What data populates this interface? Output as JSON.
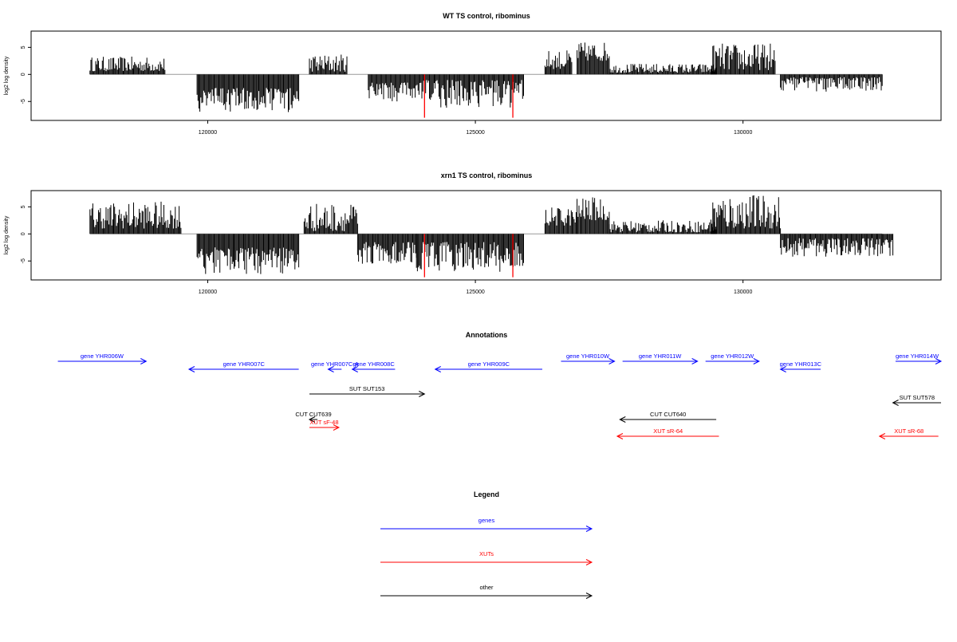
{
  "panels": [
    {
      "title": "WT TS control, ribominus",
      "ylabel": "log2 log density",
      "yticks": [
        -5,
        0,
        5
      ],
      "ylim": [
        -8.5,
        8
      ],
      "xlim": [
        116700,
        133700
      ],
      "xticks": [
        120000,
        125000,
        130000
      ]
    },
    {
      "title": "xrn1 TS control, ribominus",
      "ylabel": "log2 log density",
      "yticks": [
        -5,
        0,
        5
      ],
      "ylim": [
        -8.5,
        8
      ],
      "xlim": [
        116700,
        133700
      ],
      "xticks": [
        120000,
        125000,
        130000
      ]
    }
  ],
  "chart_data": [
    {
      "type": "bar",
      "title": "WT TS control, ribominus",
      "xlabel": "",
      "ylabel": "log2 log density",
      "xlim": [
        116700,
        133700
      ],
      "ylim": [
        -8.5,
        8
      ],
      "grid": false,
      "series": [
        {
          "segments": [
            {
              "x": [
                117800,
                119200
              ],
              "sign": 1,
              "min": 0.6,
              "max": 3.3
            },
            {
              "x": [
                119800,
                121700
              ],
              "sign": -1,
              "min": 2.5,
              "max": 7.0
            },
            {
              "x": [
                121900,
                122600
              ],
              "sign": 1,
              "min": 0.5,
              "max": 3.8
            },
            {
              "x": [
                123000,
                124000
              ],
              "sign": -1,
              "min": 1.5,
              "max": 5.2
            },
            {
              "x": [
                124000,
                125900
              ],
              "sign": -1,
              "min": 1.0,
              "max": 6.2
            },
            {
              "x": [
                126300,
                126800
              ],
              "sign": 1,
              "min": 1.0,
              "max": 4.5
            },
            {
              "x": [
                126900,
                127500
              ],
              "sign": 1,
              "min": 2.5,
              "max": 6.0
            },
            {
              "x": [
                127500,
                129500
              ],
              "sign": 1,
              "min": 0.3,
              "max": 2.0
            },
            {
              "x": [
                129400,
                130600
              ],
              "sign": 1,
              "min": 0.8,
              "max": 5.8
            },
            {
              "x": [
                130700,
                132600
              ],
              "sign": -1,
              "min": 0.5,
              "max": 3.3
            }
          ]
        }
      ],
      "red_lines": [
        {
          "x": 124050,
          "y": -8
        },
        {
          "x": 125700,
          "y": -8
        }
      ]
    },
    {
      "type": "bar",
      "title": "xrn1 TS control, ribominus",
      "xlabel": "",
      "ylabel": "log2 log density",
      "xlim": [
        116700,
        133700
      ],
      "ylim": [
        -8.5,
        8
      ],
      "grid": false,
      "series": [
        {
          "segments": [
            {
              "x": [
                117800,
                119500
              ],
              "sign": 1,
              "min": 1.0,
              "max": 6.0
            },
            {
              "x": [
                119800,
                121700
              ],
              "sign": -1,
              "min": 2.5,
              "max": 7.5
            },
            {
              "x": [
                121800,
                122800
              ],
              "sign": 1,
              "min": 0.5,
              "max": 5.8
            },
            {
              "x": [
                122800,
                123900
              ],
              "sign": -1,
              "min": 1.5,
              "max": 5.5
            },
            {
              "x": [
                123900,
                125900
              ],
              "sign": -1,
              "min": 1.5,
              "max": 7.0
            },
            {
              "x": [
                126300,
                126900
              ],
              "sign": 1,
              "min": 1.5,
              "max": 5.0
            },
            {
              "x": [
                126900,
                127500
              ],
              "sign": 1,
              "min": 2.5,
              "max": 6.8
            },
            {
              "x": [
                127500,
                129500
              ],
              "sign": 1,
              "min": 0.3,
              "max": 2.5
            },
            {
              "x": [
                129400,
                130700
              ],
              "sign": 1,
              "min": 1.0,
              "max": 7.4
            },
            {
              "x": [
                130700,
                132800
              ],
              "sign": -1,
              "min": 0.8,
              "max": 4.2
            }
          ]
        }
      ],
      "red_lines": [
        {
          "x": 124050,
          "y": -8
        },
        {
          "x": 125700,
          "y": -8
        }
      ]
    },
    {
      "type": "table",
      "title": "Annotations",
      "rows": [
        {
          "label": "gene YHR006W",
          "start": 117200,
          "end": 118850,
          "color": "#0000ff"
        },
        {
          "label": "gene YHR007C",
          "start": 121700,
          "end": 119650,
          "color": "#0000ff"
        },
        {
          "label": "gene YHR007C-A",
          "start": 122500,
          "end": 122250,
          "color": "#0000ff"
        },
        {
          "label": "gene YHR008C",
          "start": 123500,
          "end": 122700,
          "color": "#0000ff"
        },
        {
          "label": "gene YHR009C",
          "start": 126250,
          "end": 124250,
          "color": "#0000ff"
        },
        {
          "label": "gene YHR010W",
          "start": 126600,
          "end": 127600,
          "color": "#0000ff"
        },
        {
          "label": "gene YHR011W",
          "start": 127750,
          "end": 129150,
          "color": "#0000ff"
        },
        {
          "label": "gene YHR012W",
          "start": 129300,
          "end": 130300,
          "color": "#0000ff"
        },
        {
          "label": "gene YHR013C",
          "start": 131450,
          "end": 130700,
          "color": "#0000ff"
        },
        {
          "label": "gene YHR014W",
          "start": 132850,
          "end": 133700,
          "color": "#0000ff"
        },
        {
          "label": "SUT SUT153",
          "start": 121900,
          "end": 124050,
          "color": "#000000"
        },
        {
          "label": "SUT SUT578",
          "start": 133700,
          "end": 132800,
          "color": "#000000"
        },
        {
          "label": "CUT CUT639",
          "start": 122050,
          "end": 121900,
          "color": "#000000"
        },
        {
          "label": "CUT CUT640",
          "start": 129500,
          "end": 127700,
          "color": "#000000"
        },
        {
          "label": "XUT sF-48",
          "start": 121900,
          "end": 122450,
          "color": "#ff0000"
        },
        {
          "label": "XUT sR-64",
          "start": 129550,
          "end": 127650,
          "color": "#ff0000"
        },
        {
          "label": "XUT sR-68",
          "start": 133650,
          "end": 132550,
          "color": "#ff0000"
        }
      ]
    }
  ],
  "annotations": {
    "title": "Annotations",
    "items": [
      {
        "label": "gene YHR006W"
      },
      {
        "label": "gene YHR007C"
      },
      {
        "label": "gene YHR007C-A"
      },
      {
        "label": "gene YHR008C"
      },
      {
        "label": "gene YHR009C"
      },
      {
        "label": "gene YHR010W"
      },
      {
        "label": "gene YHR011W"
      },
      {
        "label": "gene YHR012W"
      },
      {
        "label": "gene YHR013C"
      },
      {
        "label": "gene YHR014W"
      },
      {
        "label": "SUT SUT153"
      },
      {
        "label": "SUT SUT578"
      },
      {
        "label": "CUT CUT639"
      },
      {
        "label": "CUT CUT640"
      },
      {
        "label": "XUT sF-48"
      },
      {
        "label": "XUT sR-64"
      },
      {
        "label": "XUT sR-68"
      }
    ]
  },
  "legend": {
    "title": "Legend",
    "items": [
      {
        "label": "genes",
        "color": "#0000ff"
      },
      {
        "label": "XUTs",
        "color": "#ff0000"
      },
      {
        "label": "other",
        "color": "#000000"
      }
    ]
  },
  "colors": {
    "bars": "#000000",
    "red_marker": "#ff0000",
    "axis": "#000000",
    "baseline": "#999999",
    "gene": "#0000ff",
    "xut": "#ff0000",
    "other": "#000000"
  }
}
